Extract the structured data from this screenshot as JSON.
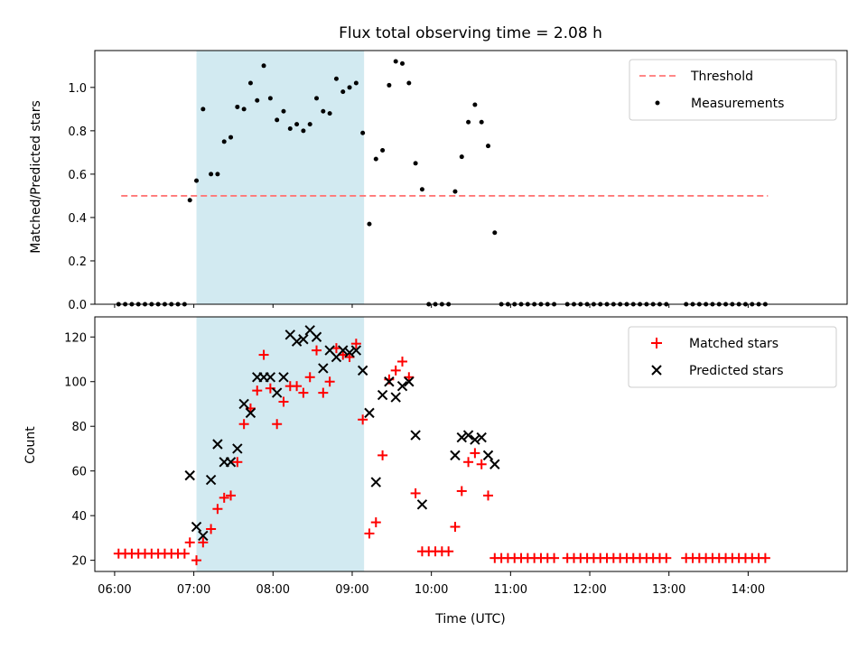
{
  "chart_data": [
    {
      "type": "scatter",
      "title": "Flux total observing time = 2.08 h",
      "xlabel": "",
      "ylabel": "Matched/Predicted stars",
      "ylim": [
        0,
        1.17
      ],
      "yticks": [
        "0.0",
        "0.2",
        "0.4",
        "0.6",
        "0.8",
        "1.0"
      ],
      "shaded_region": {
        "start": "07:02",
        "end": "09:09",
        "color": "#add8e6"
      },
      "legend": {
        "placement": "top-right",
        "entries": [
          "Threshold",
          "Measurements"
        ]
      },
      "threshold": {
        "name": "Threshold",
        "value": 0.5,
        "x_start": "06:05",
        "x_end": "14:15",
        "color": "#ff7777",
        "style": "dashed"
      },
      "series": [
        {
          "name": "Measurements",
          "color": "#000000",
          "points": [
            [
              "06:03",
              0
            ],
            [
              "06:08",
              0
            ],
            [
              "06:13",
              0
            ],
            [
              "06:18",
              0
            ],
            [
              "06:23",
              0
            ],
            [
              "06:28",
              0
            ],
            [
              "06:33",
              0
            ],
            [
              "06:38",
              0
            ],
            [
              "06:43",
              0
            ],
            [
              "06:48",
              0
            ],
            [
              "06:53",
              0
            ],
            [
              "06:57",
              0.48
            ],
            [
              "07:02",
              0.57
            ],
            [
              "07:07",
              0.9
            ],
            [
              "07:13",
              0.6
            ],
            [
              "07:18",
              0.6
            ],
            [
              "07:23",
              0.75
            ],
            [
              "07:28",
              0.77
            ],
            [
              "07:33",
              0.91
            ],
            [
              "07:38",
              0.9
            ],
            [
              "07:43",
              1.02
            ],
            [
              "07:48",
              0.94
            ],
            [
              "07:53",
              1.1
            ],
            [
              "07:58",
              0.95
            ],
            [
              "08:03",
              0.85
            ],
            [
              "08:08",
              0.89
            ],
            [
              "08:13",
              0.81
            ],
            [
              "08:18",
              0.83
            ],
            [
              "08:23",
              0.8
            ],
            [
              "08:28",
              0.83
            ],
            [
              "08:33",
              0.95
            ],
            [
              "08:38",
              0.89
            ],
            [
              "08:43",
              0.88
            ],
            [
              "08:48",
              1.04
            ],
            [
              "08:53",
              0.98
            ],
            [
              "08:58",
              1.0
            ],
            [
              "09:03",
              1.02
            ],
            [
              "09:08",
              0.79
            ],
            [
              "09:13",
              0.37
            ],
            [
              "09:18",
              0.67
            ],
            [
              "09:23",
              0.71
            ],
            [
              "09:28",
              1.01
            ],
            [
              "09:33",
              1.12
            ],
            [
              "09:38",
              1.11
            ],
            [
              "09:43",
              1.02
            ],
            [
              "09:48",
              0.65
            ],
            [
              "09:53",
              0.53
            ],
            [
              "09:58",
              0
            ],
            [
              "10:03",
              0
            ],
            [
              "10:08",
              0
            ],
            [
              "10:13",
              0
            ],
            [
              "10:18",
              0.52
            ],
            [
              "10:23",
              0.68
            ],
            [
              "10:28",
              0.84
            ],
            [
              "10:33",
              0.92
            ],
            [
              "10:38",
              0.84
            ],
            [
              "10:43",
              0.73
            ],
            [
              "10:48",
              0.33
            ],
            [
              "10:53",
              0
            ],
            [
              "10:58",
              0
            ],
            [
              "11:03",
              0
            ],
            [
              "11:08",
              0
            ],
            [
              "11:13",
              0
            ],
            [
              "11:18",
              0
            ],
            [
              "11:23",
              0
            ],
            [
              "11:28",
              0
            ],
            [
              "11:33",
              0
            ],
            [
              "11:43",
              0
            ],
            [
              "11:48",
              0
            ],
            [
              "11:53",
              0
            ],
            [
              "11:58",
              0
            ],
            [
              "12:03",
              0
            ],
            [
              "12:08",
              0
            ],
            [
              "12:13",
              0
            ],
            [
              "12:18",
              0
            ],
            [
              "12:23",
              0
            ],
            [
              "12:28",
              0
            ],
            [
              "12:33",
              0
            ],
            [
              "12:38",
              0
            ],
            [
              "12:43",
              0
            ],
            [
              "12:48",
              0
            ],
            [
              "12:53",
              0
            ],
            [
              "12:58",
              0
            ],
            [
              "13:13",
              0
            ],
            [
              "13:18",
              0
            ],
            [
              "13:23",
              0
            ],
            [
              "13:28",
              0
            ],
            [
              "13:33",
              0
            ],
            [
              "13:38",
              0
            ],
            [
              "13:43",
              0
            ],
            [
              "13:48",
              0
            ],
            [
              "13:53",
              0
            ],
            [
              "13:58",
              0
            ],
            [
              "14:03",
              0
            ],
            [
              "14:08",
              0
            ],
            [
              "14:13",
              0
            ]
          ]
        }
      ]
    },
    {
      "type": "scatter",
      "title": "",
      "xlabel": "Time (UTC)",
      "ylabel": "Count",
      "ylim": [
        15,
        129
      ],
      "yticks": [
        "20",
        "40",
        "60",
        "80",
        "100",
        "120"
      ],
      "xlim": [
        "05:45",
        "15:15"
      ],
      "xticks": [
        "06:00",
        "07:00",
        "08:00",
        "09:00",
        "10:00",
        "11:00",
        "12:00",
        "13:00",
        "14:00"
      ],
      "shaded_region": {
        "start": "07:02",
        "end": "09:09",
        "color": "#add8e6"
      },
      "legend": {
        "placement": "top-right",
        "entries": [
          "Matched stars",
          "Predicted stars"
        ]
      },
      "series": [
        {
          "name": "Matched stars",
          "marker": "+",
          "color": "#ff0000",
          "points": [
            [
              "06:03",
              23
            ],
            [
              "06:08",
              23
            ],
            [
              "06:13",
              23
            ],
            [
              "06:18",
              23
            ],
            [
              "06:23",
              23
            ],
            [
              "06:28",
              23
            ],
            [
              "06:33",
              23
            ],
            [
              "06:38",
              23
            ],
            [
              "06:43",
              23
            ],
            [
              "06:48",
              23
            ],
            [
              "06:53",
              23
            ],
            [
              "06:57",
              28
            ],
            [
              "07:02",
              20
            ],
            [
              "07:07",
              28
            ],
            [
              "07:13",
              34
            ],
            [
              "07:18",
              43
            ],
            [
              "07:23",
              48
            ],
            [
              "07:28",
              49
            ],
            [
              "07:33",
              64
            ],
            [
              "07:38",
              81
            ],
            [
              "07:43",
              88
            ],
            [
              "07:48",
              96
            ],
            [
              "07:53",
              112
            ],
            [
              "07:58",
              97
            ],
            [
              "08:03",
              81
            ],
            [
              "08:08",
              91
            ],
            [
              "08:13",
              98
            ],
            [
              "08:18",
              98
            ],
            [
              "08:23",
              95
            ],
            [
              "08:28",
              102
            ],
            [
              "08:33",
              114
            ],
            [
              "08:38",
              95
            ],
            [
              "08:43",
              100
            ],
            [
              "08:48",
              115
            ],
            [
              "08:53",
              112
            ],
            [
              "08:58",
              111
            ],
            [
              "09:03",
              117
            ],
            [
              "09:08",
              83
            ],
            [
              "09:13",
              32
            ],
            [
              "09:18",
              37
            ],
            [
              "09:23",
              67
            ],
            [
              "09:28",
              101
            ],
            [
              "09:33",
              105
            ],
            [
              "09:38",
              109
            ],
            [
              "09:43",
              102
            ],
            [
              "09:48",
              50
            ],
            [
              "09:53",
              24
            ],
            [
              "09:58",
              24
            ],
            [
              "10:03",
              24
            ],
            [
              "10:08",
              24
            ],
            [
              "10:13",
              24
            ],
            [
              "10:18",
              35
            ],
            [
              "10:23",
              51
            ],
            [
              "10:28",
              64
            ],
            [
              "10:33",
              68
            ],
            [
              "10:38",
              63
            ],
            [
              "10:43",
              49
            ],
            [
              "10:48",
              21
            ],
            [
              "10:53",
              21
            ],
            [
              "10:58",
              21
            ],
            [
              "11:03",
              21
            ],
            [
              "11:08",
              21
            ],
            [
              "11:13",
              21
            ],
            [
              "11:18",
              21
            ],
            [
              "11:23",
              21
            ],
            [
              "11:28",
              21
            ],
            [
              "11:33",
              21
            ],
            [
              "11:43",
              21
            ],
            [
              "11:48",
              21
            ],
            [
              "11:53",
              21
            ],
            [
              "11:58",
              21
            ],
            [
              "12:03",
              21
            ],
            [
              "12:08",
              21
            ],
            [
              "12:13",
              21
            ],
            [
              "12:18",
              21
            ],
            [
              "12:23",
              21
            ],
            [
              "12:28",
              21
            ],
            [
              "12:33",
              21
            ],
            [
              "12:38",
              21
            ],
            [
              "12:43",
              21
            ],
            [
              "12:48",
              21
            ],
            [
              "12:53",
              21
            ],
            [
              "12:58",
              21
            ],
            [
              "13:13",
              21
            ],
            [
              "13:18",
              21
            ],
            [
              "13:23",
              21
            ],
            [
              "13:28",
              21
            ],
            [
              "13:33",
              21
            ],
            [
              "13:38",
              21
            ],
            [
              "13:43",
              21
            ],
            [
              "13:48",
              21
            ],
            [
              "13:53",
              21
            ],
            [
              "13:58",
              21
            ],
            [
              "14:03",
              21
            ],
            [
              "14:08",
              21
            ],
            [
              "14:13",
              21
            ]
          ]
        },
        {
          "name": "Predicted stars",
          "marker": "x",
          "color": "#000000",
          "points": [
            [
              "06:57",
              58
            ],
            [
              "07:02",
              35
            ],
            [
              "07:07",
              31
            ],
            [
              "07:13",
              56
            ],
            [
              "07:18",
              72
            ],
            [
              "07:23",
              64
            ],
            [
              "07:28",
              64
            ],
            [
              "07:33",
              70
            ],
            [
              "07:38",
              90
            ],
            [
              "07:43",
              86
            ],
            [
              "07:48",
              102
            ],
            [
              "07:53",
              102
            ],
            [
              "07:58",
              102
            ],
            [
              "08:03",
              95
            ],
            [
              "08:08",
              102
            ],
            [
              "08:13",
              121
            ],
            [
              "08:18",
              118
            ],
            [
              "08:23",
              119
            ],
            [
              "08:28",
              123
            ],
            [
              "08:33",
              120
            ],
            [
              "08:38",
              106
            ],
            [
              "08:43",
              114
            ],
            [
              "08:48",
              111
            ],
            [
              "08:53",
              114
            ],
            [
              "08:58",
              113
            ],
            [
              "09:03",
              114
            ],
            [
              "09:08",
              105
            ],
            [
              "09:13",
              86
            ],
            [
              "09:18",
              55
            ],
            [
              "09:23",
              94
            ],
            [
              "09:28",
              100
            ],
            [
              "09:33",
              93
            ],
            [
              "09:38",
              98
            ],
            [
              "09:43",
              100
            ],
            [
              "09:48",
              76
            ],
            [
              "09:53",
              45
            ],
            [
              "10:18",
              67
            ],
            [
              "10:23",
              75
            ],
            [
              "10:28",
              76
            ],
            [
              "10:33",
              74
            ],
            [
              "10:38",
              75
            ],
            [
              "10:43",
              67
            ],
            [
              "10:48",
              63
            ]
          ]
        }
      ]
    }
  ]
}
